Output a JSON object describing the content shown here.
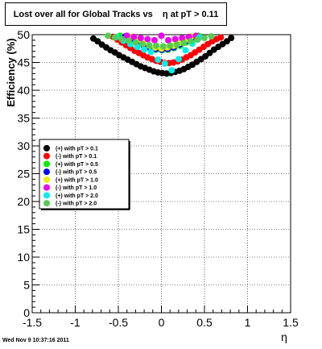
{
  "footer": "Wed Nov  9 10:37:16 2011",
  "colors": {
    "pos_0_1": "#000000",
    "neg_0_1": "#ff0000",
    "pos_0_5": "#00ee00",
    "neg_0_5": "#0000ff",
    "pos_1_0": "#eeee00",
    "neg_1_0": "#ee00ee",
    "pos_2_0": "#00eeee",
    "neg_2_0": "#55cc55"
  },
  "chart_data": {
    "type": "scatter",
    "title": "Lost over all for Global Tracks vs    η at pT > 0.11",
    "xlabel": "η",
    "ylabel": "Efficiency (%)",
    "xlim": [
      -1.5,
      1.5
    ],
    "ylim": [
      0,
      50
    ],
    "xticks": [
      "-1.5",
      "-1",
      "-0.5",
      "0",
      "0.5",
      "1",
      "1.5"
    ],
    "yticks": [
      "0",
      "5",
      "10",
      "15",
      "20",
      "25",
      "30",
      "35",
      "40",
      "45",
      "50"
    ],
    "grid": true,
    "legend_position": "left-middle",
    "series": [
      {
        "name": "(+) with pT > 0.1",
        "color_key": "pos_0_1",
        "x": [
          -0.79,
          -0.74,
          -0.69,
          -0.64,
          -0.59,
          -0.54,
          -0.49,
          -0.44,
          -0.39,
          -0.34,
          -0.29,
          -0.24,
          -0.19,
          -0.14,
          -0.09,
          -0.04,
          0.01,
          0.06,
          0.11,
          0.16,
          0.21,
          0.26,
          0.31,
          0.36,
          0.41,
          0.46,
          0.51,
          0.56,
          0.61,
          0.66,
          0.71,
          0.76,
          0.81
        ],
        "y": [
          49.3,
          48.8,
          48.2,
          47.7,
          47.2,
          46.8,
          46.3,
          45.9,
          45.5,
          45.1,
          44.7,
          44.3,
          44.0,
          43.7,
          43.4,
          43.2,
          43.1,
          43.0,
          43.1,
          43.3,
          43.5,
          43.8,
          44.2,
          44.6,
          45.1,
          45.6,
          46.1,
          46.7,
          47.3,
          47.8,
          48.3,
          48.8,
          49.4
        ]
      },
      {
        "name": "(-) with pT > 0.1",
        "color_key": "neg_0_1",
        "x": [
          -0.56,
          -0.51,
          -0.46,
          -0.41,
          -0.36,
          -0.31,
          -0.26,
          -0.21,
          -0.16,
          -0.11,
          -0.06,
          -0.01,
          0.04,
          0.09,
          0.14,
          0.19,
          0.24,
          0.29,
          0.34,
          0.39,
          0.44,
          0.49,
          0.54,
          0.59,
          0.64,
          0.69
        ],
        "y": [
          49.6,
          49.1,
          48.6,
          48.1,
          47.6,
          47.1,
          46.7,
          46.3,
          45.9,
          45.6,
          45.3,
          45.1,
          44.9,
          44.9,
          45.0,
          45.2,
          45.5,
          45.9,
          46.3,
          46.8,
          47.3,
          47.8,
          48.3,
          48.8,
          49.2,
          49.5
        ]
      },
      {
        "name": "(+) with pT > 0.5",
        "color_key": "pos_0_5",
        "x": [
          -0.48,
          -0.41,
          -0.34,
          -0.27,
          -0.2,
          -0.13,
          -0.06,
          0.01,
          0.08,
          0.15,
          0.22,
          0.29,
          0.36,
          0.43
        ],
        "y": [
          49.8,
          49.3,
          48.8,
          48.3,
          47.8,
          47.5,
          47.3,
          47.2,
          47.3,
          47.6,
          48.0,
          48.6,
          49.2,
          49.8
        ]
      },
      {
        "name": "(-) with pT > 0.5",
        "color_key": "neg_0_5",
        "x": [
          -0.42,
          -0.35,
          -0.28,
          -0.21,
          -0.14,
          -0.07,
          0.0,
          0.07,
          0.14,
          0.21,
          0.28,
          0.35
        ],
        "y": [
          49.7,
          49.1,
          48.6,
          48.1,
          47.7,
          47.4,
          47.3,
          47.4,
          47.7,
          48.2,
          48.8,
          49.5
        ]
      },
      {
        "name": "(+) with pT > 1.0",
        "color_key": "pos_1_0",
        "x": [
          -0.35,
          -0.28,
          -0.21,
          -0.14,
          -0.07,
          0.0,
          0.07,
          0.14,
          0.21,
          0.28,
          0.35
        ],
        "y": [
          49.6,
          49.0,
          48.4,
          48.0,
          47.7,
          47.5,
          47.7,
          48.0,
          48.5,
          49.1,
          49.7
        ]
      },
      {
        "name": "(-) with pT > 1.0",
        "color_key": "neg_1_0",
        "x": [
          -0.4,
          -0.32,
          -0.24,
          -0.16,
          -0.08,
          0.0,
          0.08,
          0.16,
          0.24,
          0.32,
          0.4
        ],
        "y": [
          49.8,
          49.6,
          49.4,
          49.2,
          49.0,
          49.8,
          49.0,
          49.2,
          49.4,
          49.6,
          49.8
        ]
      },
      {
        "name": "(+) with pT > 2.0",
        "color_key": "pos_2_0",
        "x": [
          -0.52,
          -0.44,
          -0.36,
          -0.28,
          -0.2,
          -0.12,
          -0.04,
          0.04,
          0.12,
          0.2,
          0.28,
          0.36,
          0.44
        ],
        "y": [
          49.6,
          48.9,
          48.3,
          47.8,
          47.3,
          46.9,
          45.5,
          44.8,
          43.6,
          45.6,
          47.2,
          48.4,
          49.5
        ]
      },
      {
        "name": "(-) with pT > 2.0",
        "color_key": "neg_2_0",
        "x": [
          -0.62,
          -0.54,
          -0.46,
          -0.38,
          -0.3,
          -0.22,
          -0.14,
          -0.06,
          0.02,
          0.1,
          0.18,
          0.26,
          0.34,
          0.42,
          0.5,
          0.58
        ],
        "y": [
          49.8,
          49.5,
          49.2,
          48.9,
          48.6,
          48.3,
          48.1,
          48.0,
          47.9,
          48.0,
          48.2,
          48.5,
          48.8,
          49.1,
          49.4,
          49.7
        ]
      }
    ]
  }
}
